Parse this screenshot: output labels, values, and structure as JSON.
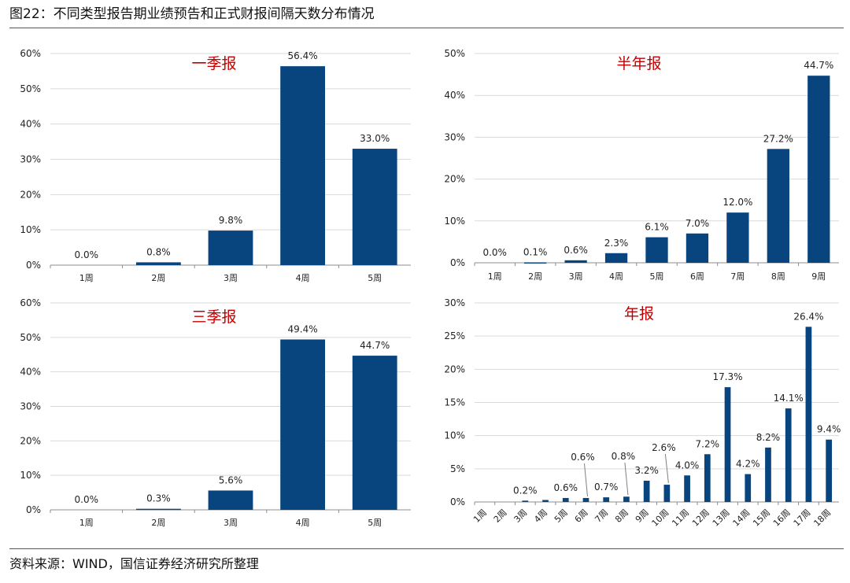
{
  "figure": {
    "title": "图22：不同类型报告期业绩预告和正式财报间隔天数分布情况",
    "source": "资料来源：WIND，国信证券经济研究所整理"
  },
  "colors": {
    "bar": "#08457e",
    "grid": "#d9d9d9",
    "axis": "#8c8c8c",
    "leader": "#7f7f7f",
    "panel_title": "#c00000"
  },
  "chart_data": [
    {
      "type": "bar",
      "title": "一季报",
      "categories": [
        "1周",
        "2周",
        "3周",
        "4周",
        "5周"
      ],
      "values": [
        0.0,
        0.8,
        9.8,
        56.4,
        33.0
      ],
      "value_labels": [
        "0.0%",
        "0.8%",
        "9.8%",
        "56.4%",
        "33.0%"
      ],
      "ylim": [
        0,
        60
      ],
      "yticks": [
        "0%",
        "10%",
        "20%",
        "30%",
        "40%",
        "50%",
        "60%"
      ],
      "grid": true,
      "xlabel": "",
      "ylabel": ""
    },
    {
      "type": "bar",
      "title": "半年报",
      "categories": [
        "1周",
        "2周",
        "3周",
        "4周",
        "5周",
        "6周",
        "7周",
        "8周",
        "9周"
      ],
      "values": [
        0.0,
        0.1,
        0.6,
        2.3,
        6.1,
        7.0,
        12.0,
        27.2,
        44.7
      ],
      "value_labels": [
        "0.0%",
        "0.1%",
        "0.6%",
        "2.3%",
        "6.1%",
        "7.0%",
        "12.0%",
        "27.2%",
        "44.7%"
      ],
      "ylim": [
        0,
        50
      ],
      "yticks": [
        "0%",
        "10%",
        "20%",
        "30%",
        "40%",
        "50%"
      ],
      "grid": true,
      "xlabel": "",
      "ylabel": ""
    },
    {
      "type": "bar",
      "title": "三季报",
      "categories": [
        "1周",
        "2周",
        "3周",
        "4周",
        "5周"
      ],
      "values": [
        0.0,
        0.3,
        5.6,
        49.4,
        44.7
      ],
      "value_labels": [
        "0.0%",
        "0.3%",
        "5.6%",
        "49.4%",
        "44.7%"
      ],
      "ylim": [
        0,
        60
      ],
      "yticks": [
        "0%",
        "10%",
        "20%",
        "30%",
        "40%",
        "50%",
        "60%"
      ],
      "grid": true,
      "xlabel": "",
      "ylabel": ""
    },
    {
      "type": "bar",
      "title": "年报",
      "categories": [
        "1周",
        "2周",
        "3周",
        "4周",
        "5周",
        "6周",
        "7周",
        "8周",
        "9周",
        "10周",
        "11周",
        "12周",
        "13周",
        "14周",
        "15周",
        "16周",
        "17周",
        "18周"
      ],
      "values": [
        0.0,
        0.0,
        0.2,
        0.3,
        0.6,
        0.6,
        0.7,
        0.8,
        3.2,
        2.6,
        4.0,
        7.2,
        17.3,
        4.2,
        8.2,
        14.1,
        26.4,
        9.4
      ],
      "value_labels": [
        "",
        "",
        "0.2%",
        "",
        "0.6%",
        "0.6%",
        "0.7%",
        "0.8%",
        "3.2%",
        "2.6%",
        "4.0%",
        "7.2%",
        "17.3%",
        "4.2%",
        "8.2%",
        "14.1%",
        "26.4%",
        "9.4%"
      ],
      "ylim": [
        0,
        30
      ],
      "yticks": [
        "0%",
        "5%",
        "10%",
        "15%",
        "20%",
        "25%",
        "30%"
      ],
      "x_tick_rotation": -45,
      "grid": true,
      "xlabel": "",
      "ylabel": ""
    }
  ]
}
